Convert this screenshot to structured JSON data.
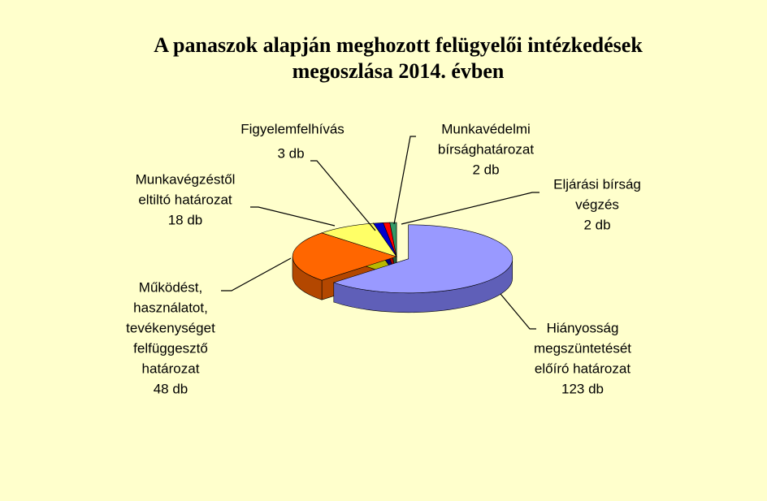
{
  "chart_data": {
    "type": "pie3d",
    "title": [
      "A panaszok alapján meghozott felügyelői intézkedések",
      "megoszlása 2014. évben"
    ],
    "categories": [
      [
        "Hiányosság",
        "megszüntetését",
        "előíró határozat"
      ],
      [
        "Működést,",
        "használatot,",
        "tevékenységet",
        "felfüggesztő",
        "határozat"
      ],
      [
        "Munkavégzéstől",
        "eltiltó határozat"
      ],
      [
        "Figyelemfelhívás"
      ],
      [
        "Munkavédelmi",
        "bírsághatározat"
      ],
      [
        "Eljárási bírság",
        "végzés"
      ]
    ],
    "values": [
      123,
      48,
      18,
      3,
      2,
      2
    ],
    "value_labels": [
      "123 db",
      "48 db",
      "18 db",
      "3 db",
      "2 db",
      "2 db"
    ],
    "colors": [
      "#9999ff",
      "#ff6600",
      "#ffff66",
      "#0000cc",
      "#ff0000",
      "#339966"
    ],
    "side_colors": [
      "#5f5fb8",
      "#b34700",
      "#b8b800",
      "#000080",
      "#a00000",
      "#1f6040"
    ]
  }
}
